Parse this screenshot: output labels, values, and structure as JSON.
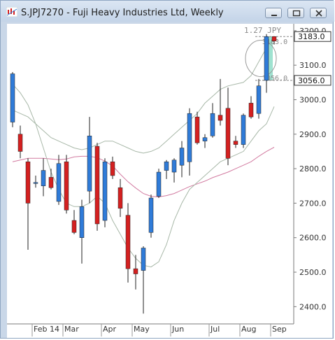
{
  "window": {
    "title": "S.JPJ7270 - Fuji Heavy Industries Ltd, Weekly",
    "buttons": [
      "minimize-icon",
      "restore-icon",
      "close-icon"
    ]
  },
  "chart_data": {
    "type": "candlestick",
    "title": "S.JPJ7270 - Fuji Heavy Industries Ltd, Weekly",
    "ylim": [
      2350,
      3220
    ],
    "y_ticks": [
      2400,
      2500,
      2600,
      2700,
      2800,
      2900,
      3000,
      3100,
      3200
    ],
    "y_tick_labels": [
      "2400.0",
      "2500.0",
      "2600.0",
      "2700.0",
      "2800.0",
      "2900.0",
      "3000.0",
      "3100.0",
      "3200.0"
    ],
    "x_month_labels": [
      {
        "label": "Feb 14",
        "index": 3
      },
      {
        "label": "Mar",
        "index": 7
      },
      {
        "label": "Apr",
        "index": 12
      },
      {
        "label": "May",
        "index": 16
      },
      {
        "label": "Jun",
        "index": 21
      },
      {
        "label": "Jul",
        "index": 26
      },
      {
        "label": "Aug",
        "index": 30
      },
      {
        "label": "Sep",
        "index": 34
      }
    ],
    "candles": [
      {
        "o": 2935,
        "h": 3080,
        "l": 2920,
        "c": 3075
      },
      {
        "o": 2900,
        "h": 2925,
        "l": 2830,
        "c": 2850
      },
      {
        "o": 2820,
        "h": 2830,
        "l": 2565,
        "c": 2700
      },
      {
        "o": 2760,
        "h": 2780,
        "l": 2745,
        "c": 2760
      },
      {
        "o": 2750,
        "h": 2830,
        "l": 2720,
        "c": 2795
      },
      {
        "o": 2775,
        "h": 2800,
        "l": 2740,
        "c": 2745
      },
      {
        "o": 2705,
        "h": 2840,
        "l": 2695,
        "c": 2815
      },
      {
        "o": 2820,
        "h": 2840,
        "l": 2670,
        "c": 2680
      },
      {
        "o": 2650,
        "h": 2680,
        "l": 2610,
        "c": 2615
      },
      {
        "o": 2600,
        "h": 2710,
        "l": 2525,
        "c": 2690
      },
      {
        "o": 2735,
        "h": 2950,
        "l": 2700,
        "c": 2895
      },
      {
        "o": 2865,
        "h": 2875,
        "l": 2620,
        "c": 2640
      },
      {
        "o": 2650,
        "h": 2830,
        "l": 2630,
        "c": 2820
      },
      {
        "o": 2820,
        "h": 2835,
        "l": 2770,
        "c": 2780
      },
      {
        "o": 2745,
        "h": 2770,
        "l": 2660,
        "c": 2685
      },
      {
        "o": 2665,
        "h": 2700,
        "l": 2470,
        "c": 2510
      },
      {
        "o": 2510,
        "h": 2550,
        "l": 2450,
        "c": 2495
      },
      {
        "o": 2505,
        "h": 2575,
        "l": 2380,
        "c": 2570
      },
      {
        "o": 2615,
        "h": 2725,
        "l": 2600,
        "c": 2715
      },
      {
        "o": 2720,
        "h": 2800,
        "l": 2715,
        "c": 2790
      },
      {
        "o": 2795,
        "h": 2825,
        "l": 2770,
        "c": 2820
      },
      {
        "o": 2790,
        "h": 2830,
        "l": 2760,
        "c": 2825
      },
      {
        "o": 2810,
        "h": 2880,
        "l": 2775,
        "c": 2860
      },
      {
        "o": 2820,
        "h": 2975,
        "l": 2780,
        "c": 2960
      },
      {
        "o": 2950,
        "h": 2965,
        "l": 2870,
        "c": 2875
      },
      {
        "o": 2880,
        "h": 2900,
        "l": 2860,
        "c": 2890
      },
      {
        "o": 2895,
        "h": 2990,
        "l": 2890,
        "c": 2960
      },
      {
        "o": 2955,
        "h": 3060,
        "l": 2925,
        "c": 2940
      },
      {
        "o": 2975,
        "h": 3035,
        "l": 2810,
        "c": 2830
      },
      {
        "o": 2880,
        "h": 2895,
        "l": 2860,
        "c": 2870
      },
      {
        "o": 2870,
        "h": 2960,
        "l": 2860,
        "c": 2955
      },
      {
        "o": 2990,
        "h": 3010,
        "l": 2945,
        "c": 2950
      },
      {
        "o": 2960,
        "h": 3060,
        "l": 2945,
        "c": 3040
      },
      {
        "o": 3056,
        "h": 3190,
        "l": 3020,
        "c": 3183
      },
      {
        "o": 3183,
        "h": 3183,
        "l": 3160,
        "c": 3170
      }
    ],
    "series": [
      {
        "color": "#d27aa0",
        "values": [
          2820,
          2825,
          2830,
          2830,
          2830,
          2828,
          2826,
          2828,
          2834,
          2836,
          2836,
          2832,
          2822,
          2808,
          2784,
          2762,
          2744,
          2728,
          2720,
          2718,
          2722,
          2728,
          2738,
          2748,
          2756,
          2764,
          2774,
          2782,
          2790,
          2800,
          2810,
          2820,
          2836,
          2850,
          2862
        ]
      },
      {
        "color": "#a8b8a8",
        "values": [
          3045,
          3020,
          2985,
          2930,
          2860,
          2790,
          2740,
          2700,
          2690,
          2690,
          2700,
          2720,
          2700,
          2650,
          2610,
          2570,
          2540,
          2520,
          2515,
          2530,
          2580,
          2650,
          2700,
          2740,
          2760,
          2780,
          2800,
          2820,
          2830,
          2840,
          2850,
          2880,
          2910,
          2930,
          2980
        ]
      },
      {
        "color": "#a8b8a8",
        "values": [
          2970,
          2960,
          2950,
          2930,
          2910,
          2890,
          2880,
          2870,
          2860,
          2855,
          2860,
          2870,
          2880,
          2880,
          2870,
          2860,
          2850,
          2845,
          2850,
          2860,
          2880,
          2900,
          2920,
          2940,
          2960,
          2990,
          3010,
          3030,
          3040,
          3045,
          3050,
          3070,
          3110,
          3150,
          3180
        ]
      }
    ],
    "price_labels": [
      {
        "label": "3183.0",
        "value": 3183
      },
      {
        "label": "3056.0",
        "value": 3056
      }
    ],
    "annotation": {
      "text": "1.27 JPY",
      "top_label": "3183.0",
      "bottom_label": "3056.0"
    },
    "colors": {
      "up": "#2f7bd8",
      "down": "#d42020",
      "highlight": "#7fd8c0"
    }
  }
}
